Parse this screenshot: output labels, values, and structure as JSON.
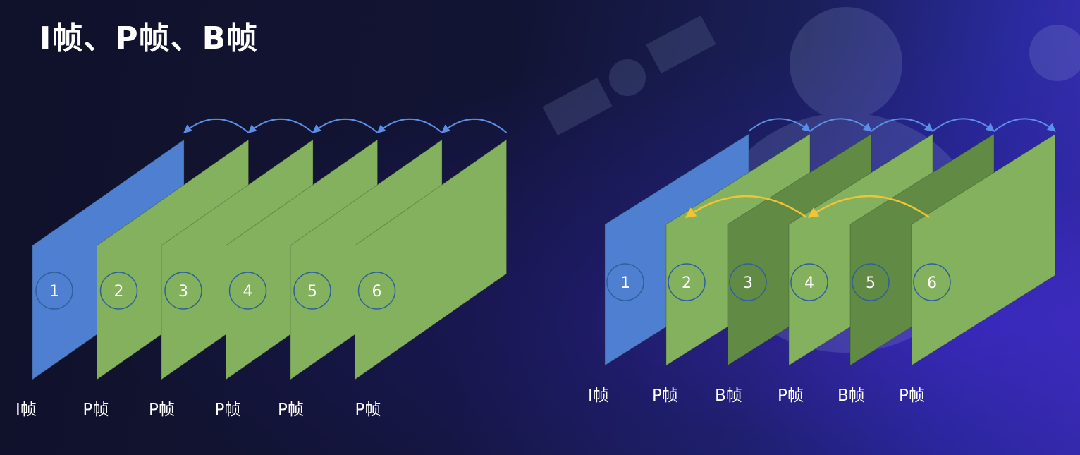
{
  "title": "I帧、P帧、B帧",
  "colors": {
    "i_frame": "#4f7fd0",
    "p_frame": "#84b15e",
    "b_frame": "#618a44",
    "p_ref_arrow": "#5b8ee6",
    "b_ref_arrow": "#f0c435",
    "circle_stroke": "#2f5f9a",
    "text": "#ffffff"
  },
  "sequences": [
    {
      "name": "ip-sequence",
      "frames": [
        {
          "number": "1",
          "type": "I",
          "label": "I帧"
        },
        {
          "number": "2",
          "type": "P",
          "label": "P帧"
        },
        {
          "number": "3",
          "type": "P",
          "label": "P帧"
        },
        {
          "number": "4",
          "type": "P",
          "label": "P帧"
        },
        {
          "number": "5",
          "type": "P",
          "label": "P帧"
        },
        {
          "number": "6",
          "type": "P",
          "label": "P帧"
        }
      ],
      "forward_refs": [
        [
          0,
          1
        ],
        [
          1,
          2
        ],
        [
          2,
          3
        ],
        [
          3,
          4
        ],
        [
          4,
          5
        ]
      ],
      "backward_refs": []
    },
    {
      "name": "ipb-sequence",
      "frames": [
        {
          "number": "1",
          "type": "I",
          "label": "I帧"
        },
        {
          "number": "2",
          "type": "P",
          "label": "P帧"
        },
        {
          "number": "3",
          "type": "B",
          "label": "B帧"
        },
        {
          "number": "4",
          "type": "P",
          "label": "P帧"
        },
        {
          "number": "5",
          "type": "B",
          "label": "B帧"
        },
        {
          "number": "6",
          "type": "P",
          "label": "P帧"
        }
      ],
      "forward_refs": [
        [
          0,
          1
        ],
        [
          1,
          2
        ],
        [
          2,
          3
        ],
        [
          3,
          4
        ],
        [
          4,
          5
        ]
      ],
      "backward_refs": [
        [
          3,
          1
        ],
        [
          5,
          3
        ]
      ]
    }
  ]
}
